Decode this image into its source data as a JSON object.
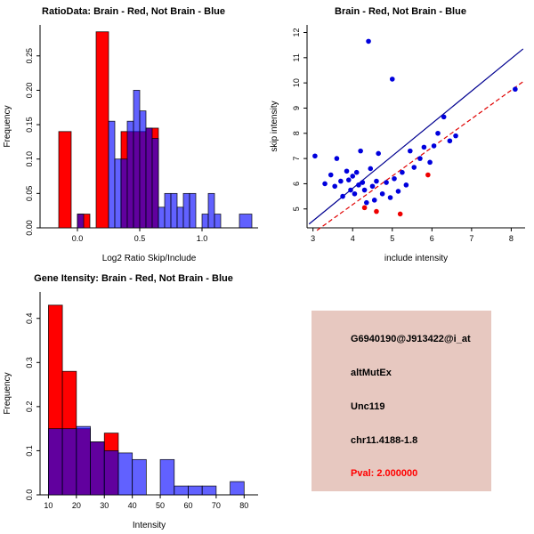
{
  "colors": {
    "background": "#ffffff",
    "brain_red": "#ff0000",
    "notbrain_blue": "#0000ff",
    "overlap_purple": "#882299",
    "info_panel_bg": "#e7c8c0",
    "pval_red": "#ff0000"
  },
  "chart_data": [
    {
      "id": "ratio_hist",
      "type": "histogram",
      "title": "RatioData: Brain - Red, Not Brain - Blue",
      "xlabel": "Log2 Ratio Skip/Include",
      "ylabel": "Frequency",
      "xlim": [
        -0.3,
        1.45
      ],
      "ylim": [
        0,
        0.295
      ],
      "xticks": [
        [
          0,
          "0.0"
        ],
        [
          0.5,
          "0.5"
        ],
        [
          1,
          "1.0"
        ]
      ],
      "yticks": [
        [
          0,
          "0.00"
        ],
        [
          0.05,
          "0.05"
        ],
        [
          0.1,
          "0.10"
        ],
        [
          0.15,
          "0.15"
        ],
        [
          0.2,
          "0.20"
        ],
        [
          0.25,
          "0.25"
        ]
      ],
      "series": [
        {
          "name": "Brain",
          "color": "#ff0000",
          "opacity": 1,
          "bars": [
            [
              -0.15,
              -0.05,
              0.14
            ],
            [
              0,
              0.1,
              0.02
            ],
            [
              0.15,
              0.25,
              0.285
            ],
            [
              0.35,
              0.45,
              0.14
            ],
            [
              0.45,
              0.55,
              0.14
            ],
            [
              0.55,
              0.65,
              0.145
            ]
          ]
        },
        {
          "name": "Not Brain",
          "color": "#0000ff",
          "opacity": 0.62,
          "bars": [
            [
              0,
              0.05,
              0.02
            ],
            [
              0.25,
              0.3,
              0.155
            ],
            [
              0.3,
              0.35,
              0.1
            ],
            [
              0.35,
              0.4,
              0.1
            ],
            [
              0.4,
              0.45,
              0.155
            ],
            [
              0.45,
              0.5,
              0.2
            ],
            [
              0.5,
              0.55,
              0.17
            ],
            [
              0.55,
              0.6,
              0.145
            ],
            [
              0.6,
              0.65,
              0.13
            ],
            [
              0.65,
              0.7,
              0.03
            ],
            [
              0.7,
              0.75,
              0.05
            ],
            [
              0.75,
              0.8,
              0.05
            ],
            [
              0.8,
              0.85,
              0.03
            ],
            [
              0.85,
              0.9,
              0.05
            ],
            [
              0.9,
              0.95,
              0.05
            ],
            [
              1,
              1.05,
              0.02
            ],
            [
              1.05,
              1.1,
              0.05
            ],
            [
              1.1,
              1.15,
              0.02
            ],
            [
              1.3,
              1.4,
              0.02
            ]
          ]
        }
      ]
    },
    {
      "id": "skip_include_scatter",
      "type": "scatter",
      "title": "Brain - Red, Not Brain - Blue",
      "xlabel": "include intensity",
      "ylabel": "skip intensity",
      "xlim": [
        2.85,
        8.35
      ],
      "ylim": [
        4.25,
        12.3
      ],
      "xticks": [
        [
          3,
          "3"
        ],
        [
          4,
          "4"
        ],
        [
          5,
          "5"
        ],
        [
          6,
          "6"
        ],
        [
          7,
          "7"
        ],
        [
          8,
          "8"
        ]
      ],
      "yticks": [
        [
          5,
          "5"
        ],
        [
          6,
          "6"
        ],
        [
          7,
          "7"
        ],
        [
          8,
          "8"
        ],
        [
          9,
          "9"
        ],
        [
          10,
          "10"
        ],
        [
          11,
          "11"
        ],
        [
          12,
          "12"
        ]
      ],
      "series": [
        {
          "name": "Not Brain",
          "color": "#0000dd",
          "points": [
            [
              3.05,
              7.1
            ],
            [
              3.3,
              6.0
            ],
            [
              3.45,
              6.35
            ],
            [
              3.55,
              5.9
            ],
            [
              3.6,
              7.0
            ],
            [
              3.7,
              6.1
            ],
            [
              3.75,
              5.5
            ],
            [
              3.85,
              6.5
            ],
            [
              3.9,
              6.15
            ],
            [
              3.95,
              5.75
            ],
            [
              4.0,
              6.3
            ],
            [
              4.05,
              5.6
            ],
            [
              4.1,
              6.45
            ],
            [
              4.15,
              5.95
            ],
            [
              4.2,
              7.3
            ],
            [
              4.25,
              6.05
            ],
            [
              4.3,
              5.75
            ],
            [
              4.35,
              5.25
            ],
            [
              4.4,
              11.65
            ],
            [
              4.45,
              6.6
            ],
            [
              4.5,
              5.9
            ],
            [
              4.55,
              5.35
            ],
            [
              4.6,
              6.1
            ],
            [
              4.65,
              7.2
            ],
            [
              4.75,
              5.6
            ],
            [
              4.85,
              6.05
            ],
            [
              4.95,
              5.45
            ],
            [
              5.0,
              10.15
            ],
            [
              5.05,
              6.2
            ],
            [
              5.15,
              5.7
            ],
            [
              5.25,
              6.45
            ],
            [
              5.35,
              5.95
            ],
            [
              5.45,
              7.3
            ],
            [
              5.55,
              6.65
            ],
            [
              5.7,
              7.0
            ],
            [
              5.8,
              7.45
            ],
            [
              5.95,
              6.85
            ],
            [
              6.05,
              7.5
            ],
            [
              6.15,
              8.0
            ],
            [
              6.3,
              8.65
            ],
            [
              6.45,
              7.7
            ],
            [
              6.6,
              7.9
            ],
            [
              8.1,
              9.75
            ]
          ]
        },
        {
          "name": "Brain",
          "color": "#ee0000",
          "points": [
            [
              4.3,
              5.05
            ],
            [
              4.6,
              4.9
            ],
            [
              5.2,
              4.8
            ],
            [
              5.9,
              6.35
            ]
          ]
        }
      ],
      "lines": [
        {
          "name": "notbrain-fit",
          "color": "#000090",
          "x1": 2.9,
          "y1": 4.4,
          "x2": 8.3,
          "y2": 11.35,
          "dash": null
        },
        {
          "name": "brain-fit",
          "color": "#e00000",
          "x1": 3.1,
          "y1": 4.15,
          "x2": 8.3,
          "y2": 10.05,
          "dash": "5,3"
        }
      ]
    },
    {
      "id": "gene_intensity_hist",
      "type": "histogram",
      "title": "Gene Itensity: Brain - Red, Not Brain - Blue",
      "xlabel": "Intensity",
      "ylabel": "Frequency",
      "xlim": [
        7,
        85
      ],
      "ylim": [
        0,
        0.46
      ],
      "xticks": [
        [
          10,
          "10"
        ],
        [
          20,
          "20"
        ],
        [
          30,
          "30"
        ],
        [
          40,
          "40"
        ],
        [
          50,
          "50"
        ],
        [
          60,
          "60"
        ],
        [
          70,
          "70"
        ],
        [
          80,
          "80"
        ]
      ],
      "yticks": [
        [
          0,
          "0.0"
        ],
        [
          0.1,
          "0.1"
        ],
        [
          0.2,
          "0.2"
        ],
        [
          0.3,
          "0.3"
        ],
        [
          0.4,
          "0.4"
        ]
      ],
      "series": [
        {
          "name": "Brain",
          "color": "#ff0000",
          "opacity": 1,
          "bars": [
            [
              10,
              15,
              0.43
            ],
            [
              15,
              20,
              0.28
            ],
            [
              20,
              25,
              0.15
            ],
            [
              25,
              30,
              0.12
            ],
            [
              30,
              35,
              0.14
            ]
          ]
        },
        {
          "name": "Not Brain",
          "color": "#0000ff",
          "opacity": 0.62,
          "bars": [
            [
              10,
              15,
              0.15
            ],
            [
              15,
              20,
              0.15
            ],
            [
              20,
              25,
              0.155
            ],
            [
              25,
              30,
              0.12
            ],
            [
              30,
              35,
              0.1
            ],
            [
              35,
              40,
              0.095
            ],
            [
              40,
              45,
              0.08
            ],
            [
              50,
              55,
              0.08
            ],
            [
              55,
              60,
              0.02
            ],
            [
              60,
              65,
              0.02
            ],
            [
              65,
              70,
              0.02
            ],
            [
              75,
              80,
              0.03
            ]
          ]
        }
      ]
    }
  ],
  "info": {
    "bg": "#e7c8c0",
    "lines": [
      {
        "text": "G6940190@J913422@i_at",
        "color": "#000000"
      },
      {
        "text": "altMutEx",
        "color": "#000000"
      },
      {
        "text": "Unc119",
        "color": "#000000"
      },
      {
        "text": "chr11.4188-1.8",
        "color": "#000000"
      },
      {
        "text": "Pval: 2.000000",
        "color": "#ff0000"
      }
    ]
  }
}
